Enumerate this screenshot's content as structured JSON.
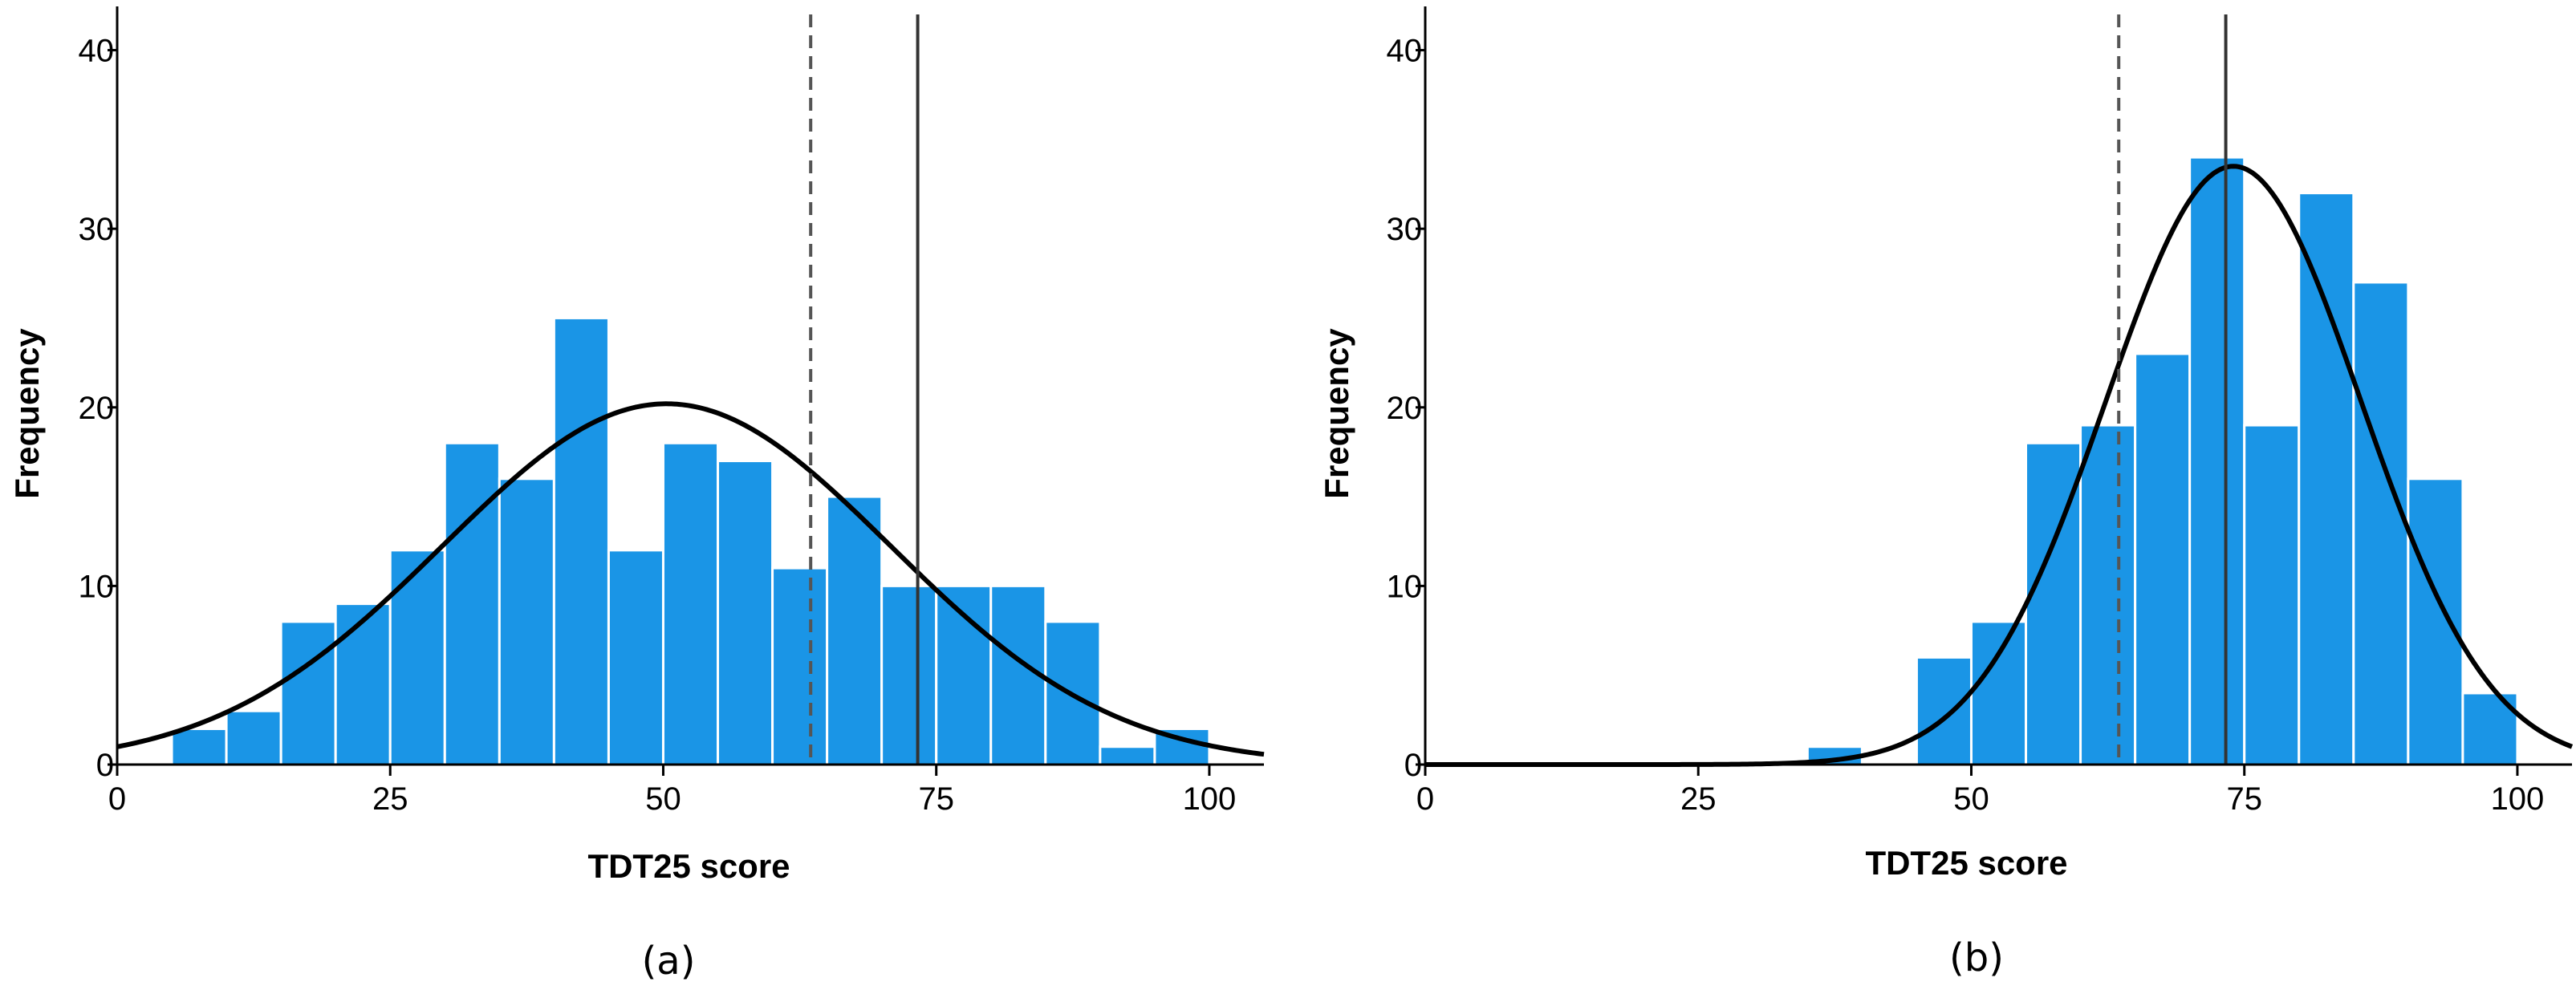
{
  "chart_data": [
    {
      "type": "bar",
      "panel_label": "(a)",
      "xlabel": "TDT25 score",
      "ylabel": "Frequency",
      "xlim": [
        0,
        105
      ],
      "ylim": [
        0,
        42
      ],
      "xticks": [
        0,
        25,
        50,
        75,
        100
      ],
      "yticks": [
        0,
        10,
        20,
        30,
        40
      ],
      "bin_width": 5,
      "bins": [
        {
          "x0": 5,
          "x1": 10,
          "count": 2
        },
        {
          "x0": 10,
          "x1": 15,
          "count": 3
        },
        {
          "x0": 15,
          "x1": 20,
          "count": 8
        },
        {
          "x0": 20,
          "x1": 25,
          "count": 9
        },
        {
          "x0": 25,
          "x1": 30,
          "count": 12
        },
        {
          "x0": 30,
          "x1": 35,
          "count": 18
        },
        {
          "x0": 35,
          "x1": 40,
          "count": 16
        },
        {
          "x0": 40,
          "x1": 45,
          "count": 25
        },
        {
          "x0": 45,
          "x1": 50,
          "count": 12
        },
        {
          "x0": 50,
          "x1": 55,
          "count": 18
        },
        {
          "x0": 55,
          "x1": 60,
          "count": 17
        },
        {
          "x0": 60,
          "x1": 65,
          "count": 11
        },
        {
          "x0": 65,
          "x1": 70,
          "count": 15
        },
        {
          "x0": 70,
          "x1": 75,
          "count": 10
        },
        {
          "x0": 75,
          "x1": 80,
          "count": 10
        },
        {
          "x0": 80,
          "x1": 85,
          "count": 10
        },
        {
          "x0": 85,
          "x1": 90,
          "count": 8
        },
        {
          "x0": 90,
          "x1": 95,
          "count": 1
        },
        {
          "x0": 95,
          "x1": 100,
          "count": 2
        }
      ],
      "normal_curve": {
        "mean": 50.3,
        "sd": 20.5,
        "peak": 20.2
      },
      "reference_lines": [
        {
          "x": 63.5,
          "style": "dashed"
        },
        {
          "x": 73.3,
          "style": "solid"
        }
      ],
      "bar_color": "#1a95e6",
      "grid": false
    },
    {
      "type": "bar",
      "panel_label": "(b)",
      "xlabel": "TDT25 score",
      "ylabel": "Frequency",
      "xlim": [
        0,
        105
      ],
      "ylim": [
        0,
        42
      ],
      "xticks": [
        0,
        25,
        50,
        75,
        100
      ],
      "yticks": [
        0,
        10,
        20,
        30,
        40
      ],
      "bin_width": 5,
      "bins": [
        {
          "x0": 35,
          "x1": 40,
          "count": 1
        },
        {
          "x0": 45,
          "x1": 50,
          "count": 6
        },
        {
          "x0": 50,
          "x1": 55,
          "count": 8
        },
        {
          "x0": 55,
          "x1": 60,
          "count": 18
        },
        {
          "x0": 60,
          "x1": 65,
          "count": 19
        },
        {
          "x0": 65,
          "x1": 70,
          "count": 23
        },
        {
          "x0": 70,
          "x1": 75,
          "count": 34
        },
        {
          "x0": 75,
          "x1": 80,
          "count": 19
        },
        {
          "x0": 80,
          "x1": 85,
          "count": 32
        },
        {
          "x0": 85,
          "x1": 90,
          "count": 27
        },
        {
          "x0": 90,
          "x1": 95,
          "count": 16
        },
        {
          "x0": 95,
          "x1": 100,
          "count": 4
        }
      ],
      "normal_curve": {
        "mean": 74,
        "sd": 11.7,
        "peak": 33.5
      },
      "reference_lines": [
        {
          "x": 63.5,
          "style": "dashed"
        },
        {
          "x": 73.3,
          "style": "solid"
        }
      ],
      "bar_color": "#1a95e6",
      "grid": false
    }
  ]
}
